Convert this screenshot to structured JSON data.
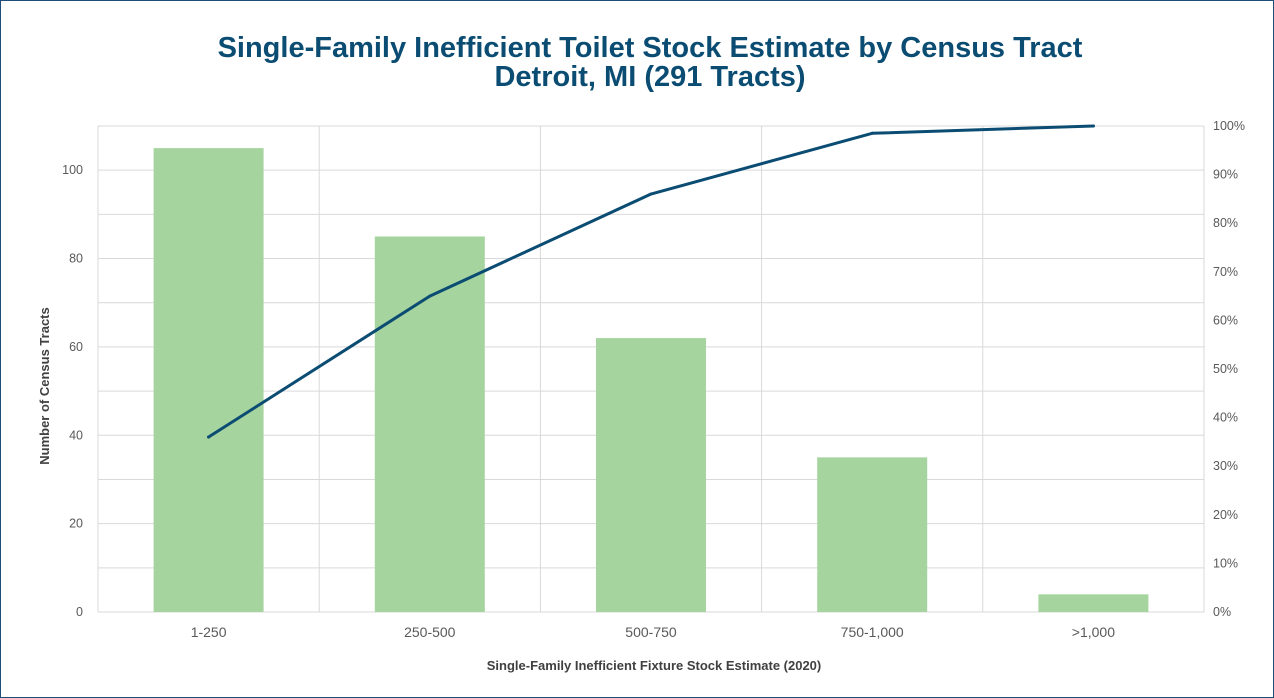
{
  "chart_data": {
    "type": "bar",
    "title": "Single-Family Inefficient Toilet Stock Estimate by Census Tract",
    "subtitle": "Detroit, MI (291 Tracts)",
    "xlabel": "Single-Family Inefficient Fixture Stock Estimate (2020)",
    "ylabel": "Number of Census Tracts",
    "categories": [
      "1-250",
      "250-500",
      "500-750",
      "750-1,000",
      ">1,000"
    ],
    "series": [
      {
        "type": "bar",
        "axis": "left",
        "values": [
          105,
          85,
          62,
          35,
          4
        ]
      },
      {
        "type": "line",
        "axis": "right",
        "values": [
          36,
          65,
          86,
          98.5,
          100
        ]
      }
    ],
    "ylim": [
      0,
      110
    ],
    "yticks": [
      "0",
      "20",
      "40",
      "60",
      "80",
      "100"
    ],
    "y2lim": [
      0,
      100
    ],
    "y2ticks": [
      "0%",
      "10%",
      "20%",
      "30%",
      "40%",
      "50%",
      "60%",
      "70%",
      "80%",
      "90%",
      "100%"
    ],
    "grid": true,
    "legend": "none",
    "colors": {
      "bar": "#a6d49f",
      "line": "#0b4c73",
      "grid": "#d9d9d9",
      "title": "#0b4c73"
    }
  }
}
